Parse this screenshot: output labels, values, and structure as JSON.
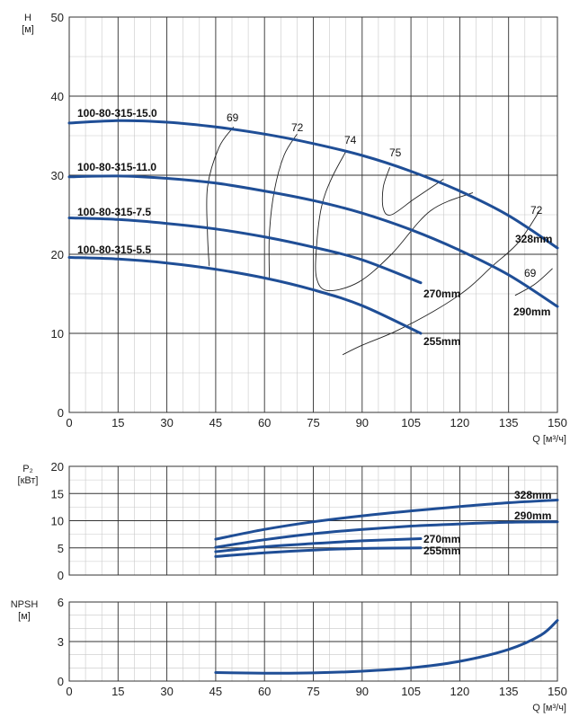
{
  "colors": {
    "curve": "#1f4e96",
    "grid_major": "#333333",
    "grid_minor": "#c8c8c8",
    "iso": "#222222"
  },
  "chart_data": [
    {
      "type": "line",
      "name": "head",
      "ylabel_line1": "H",
      "ylabel_line2": "[м]",
      "xlabel": "Q [м³/ч]",
      "xlim": [
        0,
        150
      ],
      "ylim": [
        0,
        50
      ],
      "x_ticks": [
        0,
        15,
        30,
        45,
        60,
        75,
        90,
        105,
        120,
        135,
        150
      ],
      "y_ticks": [
        0,
        10,
        20,
        30,
        40,
        50
      ],
      "series": [
        {
          "name": "100-80-315-15.0",
          "label": "100-80-315-15.0",
          "diameter": "328mm",
          "x": [
            0,
            15,
            30,
            45,
            60,
            75,
            90,
            105,
            120,
            135,
            150
          ],
          "y": [
            36.6,
            36.9,
            36.7,
            36.1,
            35.2,
            34.0,
            32.5,
            30.5,
            28.0,
            24.9,
            20.8
          ]
        },
        {
          "name": "100-80-315-11.0",
          "label": "100-80-315-11.0",
          "diameter": "290mm",
          "x": [
            0,
            15,
            30,
            45,
            60,
            75,
            90,
            105,
            120,
            135,
            150
          ],
          "y": [
            29.8,
            29.9,
            29.6,
            29.0,
            28.0,
            26.8,
            25.2,
            23.1,
            20.5,
            17.4,
            13.4
          ]
        },
        {
          "name": "100-80-315-7.5",
          "label": "100-80-315-7.5",
          "diameter": "270mm",
          "x": [
            0,
            15,
            30,
            45,
            60,
            75,
            90,
            108
          ],
          "y": [
            24.6,
            24.4,
            23.9,
            23.2,
            22.2,
            20.9,
            19.3,
            16.4
          ]
        },
        {
          "name": "100-80-315-5.5",
          "label": "100-80-315-5.5",
          "diameter": "255mm",
          "x": [
            0,
            15,
            30,
            45,
            60,
            75,
            90,
            108
          ],
          "y": [
            19.6,
            19.4,
            18.9,
            18.1,
            17.0,
            15.5,
            13.5,
            10.0
          ]
        }
      ],
      "efficiency_curves": [
        {
          "label": "69",
          "x": [
            50.5,
            46,
            42.5,
            42.5,
            43
          ],
          "y": [
            36.1,
            33.5,
            28.5,
            22.5,
            18.5
          ]
        },
        {
          "label": "72",
          "x": [
            70,
            66,
            63,
            61.5,
            61.5
          ],
          "y": [
            35.2,
            32.5,
            28.0,
            22.5,
            17.0
          ]
        },
        {
          "label": "74",
          "x": [
            85,
            80.5,
            77.5,
            76,
            76,
            79.5,
            89,
            99,
            111,
            124
          ],
          "y": [
            33.0,
            29.5,
            26.0,
            21.0,
            17.0,
            15.4,
            16.5,
            20.0,
            25.5,
            27.8
          ]
        },
        {
          "label": "75",
          "x": [
            98.5,
            96.5,
            96.5,
            99,
            106,
            115
          ],
          "y": [
            31.0,
            28.5,
            25.8,
            25.0,
            27.0,
            29.5
          ]
        },
        {
          "label": "72",
          "x": [
            144.5,
            138,
            130,
            122,
            112,
            100,
            90,
            84
          ],
          "y": [
            25.5,
            21.5,
            18.5,
            15.5,
            12.8,
            10.2,
            8.5,
            7.3
          ]
        },
        {
          "label": "69",
          "x": [
            148.5,
            143,
            137
          ],
          "y": [
            18.2,
            16.2,
            14.8
          ]
        }
      ],
      "labels": {
        "328mm": "328mm",
        "290mm": "290mm",
        "270mm": "270mm",
        "255mm": "255mm"
      }
    },
    {
      "type": "line",
      "name": "power",
      "ylabel_line1": "P₂",
      "ylabel_line2": "[кВт]",
      "xlim": [
        0,
        150
      ],
      "ylim": [
        0,
        20
      ],
      "x_ticks": [
        0,
        15,
        30,
        45,
        60,
        75,
        90,
        105,
        120,
        135,
        150
      ],
      "y_ticks": [
        0,
        5,
        10,
        15,
        20
      ],
      "series": [
        {
          "name": "328mm",
          "label": "328mm",
          "x": [
            45,
            60,
            75,
            90,
            105,
            120,
            135,
            150
          ],
          "y": [
            6.6,
            8.4,
            9.8,
            10.9,
            11.8,
            12.6,
            13.3,
            13.8
          ]
        },
        {
          "name": "290mm",
          "label": "290mm",
          "x": [
            45,
            60,
            75,
            90,
            105,
            120,
            135,
            150
          ],
          "y": [
            5.1,
            6.5,
            7.6,
            8.4,
            9.0,
            9.4,
            9.7,
            9.8
          ]
        },
        {
          "name": "270mm",
          "label": "270mm",
          "x": [
            45,
            60,
            75,
            90,
            108
          ],
          "y": [
            4.3,
            5.2,
            5.8,
            6.3,
            6.7
          ]
        },
        {
          "name": "255mm",
          "label": "255mm",
          "x": [
            45,
            60,
            75,
            90,
            108
          ],
          "y": [
            3.4,
            4.1,
            4.6,
            4.9,
            5.0
          ]
        }
      ]
    },
    {
      "type": "line",
      "name": "npsh",
      "ylabel_line1": "NPSH",
      "ylabel_line2": "[м]",
      "xlabel": "Q [м³/ч]",
      "xlim": [
        0,
        150
      ],
      "ylim": [
        0,
        6
      ],
      "x_ticks": [
        0,
        15,
        30,
        45,
        60,
        75,
        90,
        105,
        120,
        135,
        150
      ],
      "y_ticks": [
        0,
        3,
        6
      ],
      "series": [
        {
          "name": "npsh",
          "label": "",
          "x": [
            45,
            60,
            75,
            90,
            105,
            120,
            135,
            145,
            150
          ],
          "y": [
            0.65,
            0.6,
            0.62,
            0.75,
            1.0,
            1.5,
            2.4,
            3.5,
            4.6
          ]
        }
      ]
    }
  ]
}
